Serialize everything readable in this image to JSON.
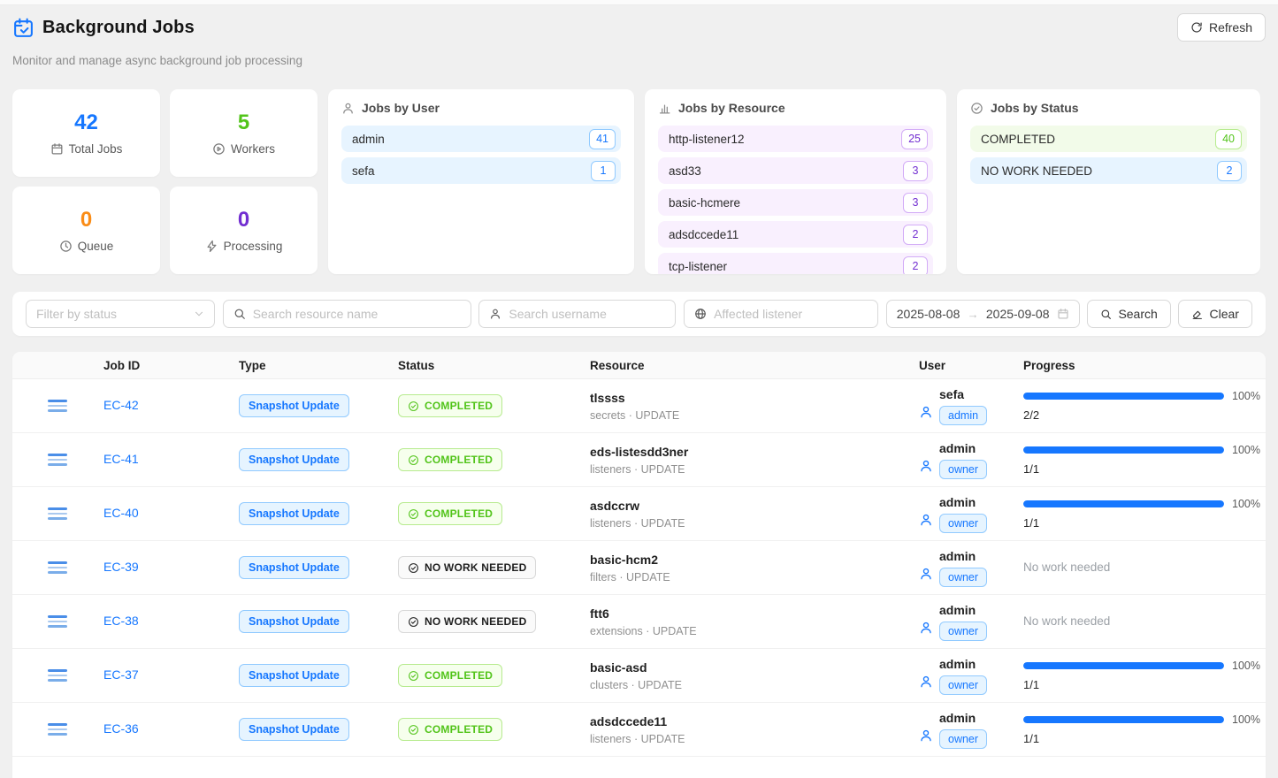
{
  "header": {
    "title": "Background Jobs",
    "subtitle": "Monitor and manage async background job processing",
    "refresh_label": "Refresh"
  },
  "stats": [
    {
      "value": "42",
      "label": "Total Jobs",
      "color": "#1677ff",
      "icon": "calendar-icon"
    },
    {
      "value": "5",
      "label": "Workers",
      "color": "#52c41a",
      "icon": "play-circle-icon"
    },
    {
      "value": "0",
      "label": "Queue",
      "color": "#fa8c16",
      "icon": "clock-icon"
    },
    {
      "value": "0",
      "label": "Processing",
      "color": "#722ed1",
      "icon": "bolt-icon"
    }
  ],
  "panels": {
    "by_user": {
      "title": "Jobs by User",
      "items": [
        {
          "label": "admin",
          "count": "41"
        },
        {
          "label": "sefa",
          "count": "1"
        }
      ]
    },
    "by_resource": {
      "title": "Jobs by Resource",
      "items": [
        {
          "label": "http-listener12",
          "count": "25"
        },
        {
          "label": "asd33",
          "count": "3"
        },
        {
          "label": "basic-hcmere",
          "count": "3"
        },
        {
          "label": "adsdccede11",
          "count": "2"
        },
        {
          "label": "tcp-listener",
          "count": "2"
        }
      ]
    },
    "by_status": {
      "title": "Jobs by Status",
      "items": [
        {
          "label": "COMPLETED",
          "count": "40",
          "theme": "green"
        },
        {
          "label": "NO WORK NEEDED",
          "count": "2",
          "theme": "blue"
        }
      ]
    }
  },
  "filters": {
    "status_placeholder": "Filter by status",
    "resource_placeholder": "Search resource name",
    "username_placeholder": "Search username",
    "listener_placeholder": "Affected listener",
    "date_start": "2025-08-08",
    "date_end": "2025-09-08",
    "search_label": "Search",
    "clear_label": "Clear"
  },
  "table": {
    "columns": [
      "Job ID",
      "Type",
      "Status",
      "Resource",
      "User",
      "Progress"
    ],
    "rows": [
      {
        "job_id": "EC-42",
        "type": "Snapshot Update",
        "status": "COMPLETED",
        "status_theme": "green",
        "resource_name": "tlssss",
        "resource_meta": "secrets · UPDATE",
        "user_name": "sefa",
        "user_role": "admin",
        "progress_pct": "100%",
        "progress_count": "2/2",
        "no_work_text": ""
      },
      {
        "job_id": "EC-41",
        "type": "Snapshot Update",
        "status": "COMPLETED",
        "status_theme": "green",
        "resource_name": "eds-listesdd3ner",
        "resource_meta": "listeners · UPDATE",
        "user_name": "admin",
        "user_role": "owner",
        "progress_pct": "100%",
        "progress_count": "1/1",
        "no_work_text": ""
      },
      {
        "job_id": "EC-40",
        "type": "Snapshot Update",
        "status": "COMPLETED",
        "status_theme": "green",
        "resource_name": "asdccrw",
        "resource_meta": "listeners · UPDATE",
        "user_name": "admin",
        "user_role": "owner",
        "progress_pct": "100%",
        "progress_count": "1/1",
        "no_work_text": ""
      },
      {
        "job_id": "EC-39",
        "type": "Snapshot Update",
        "status": "NO WORK NEEDED",
        "status_theme": "gray",
        "resource_name": "basic-hcm2",
        "resource_meta": "filters · UPDATE",
        "user_name": "admin",
        "user_role": "owner",
        "progress_pct": "",
        "progress_count": "",
        "no_work_text": "No work needed"
      },
      {
        "job_id": "EC-38",
        "type": "Snapshot Update",
        "status": "NO WORK NEEDED",
        "status_theme": "gray",
        "resource_name": "ftt6",
        "resource_meta": "extensions · UPDATE",
        "user_name": "admin",
        "user_role": "owner",
        "progress_pct": "",
        "progress_count": "",
        "no_work_text": "No work needed"
      },
      {
        "job_id": "EC-37",
        "type": "Snapshot Update",
        "status": "COMPLETED",
        "status_theme": "green",
        "resource_name": "basic-asd",
        "resource_meta": "clusters · UPDATE",
        "user_name": "admin",
        "user_role": "owner",
        "progress_pct": "100%",
        "progress_count": "1/1",
        "no_work_text": ""
      },
      {
        "job_id": "EC-36",
        "type": "Snapshot Update",
        "status": "COMPLETED",
        "status_theme": "green",
        "resource_name": "adsdccede11",
        "resource_meta": "listeners · UPDATE",
        "user_name": "admin",
        "user_role": "owner",
        "progress_pct": "100%",
        "progress_count": "1/1",
        "no_work_text": ""
      }
    ]
  }
}
